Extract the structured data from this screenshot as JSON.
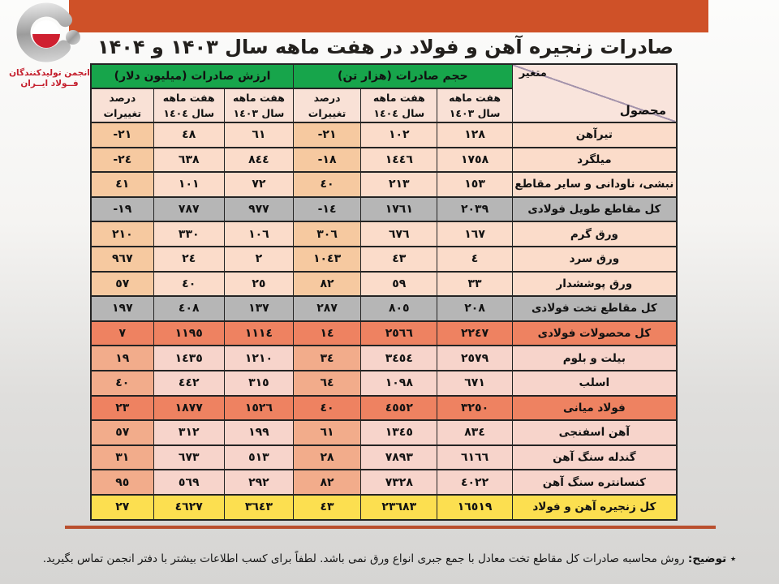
{
  "title": "صادرات زنجیره آهن و فولاد در هفت ماهه سال ۱۴۰۳ و ۱۴۰۴",
  "logo": {
    "line1": "انجمن تولیدکنندگان",
    "line2": "فــولاد ایــران"
  },
  "table": {
    "corner": {
      "variable": "متغیر",
      "product": "محصول"
    },
    "volume_group_label": "حجم صادرات (هزار تن)",
    "value_group_label": "ارزش صادرات (میلیون دلار)",
    "subheaders": {
      "seven_month": "هفت ماهه",
      "year_1403": "سال ١٤٠٣",
      "year_1404": "سال ١٤٠٤",
      "pct_change": "درصد تغییرات"
    },
    "rows": [
      {
        "product": "تیرآهن",
        "style": "a",
        "v1403": "١٢٨",
        "v1404": "١٠٢",
        "vpct": "-٢١",
        "a1403": "٦١",
        "a1404": "٤٨",
        "apct": "-٢١"
      },
      {
        "product": "میلگرد",
        "style": "a",
        "v1403": "١٧٥٨",
        "v1404": "١٤٤٦",
        "vpct": "-١٨",
        "a1403": "٨٤٤",
        "a1404": "٦٣٨",
        "apct": "-٢٤"
      },
      {
        "product": "نبشی، ناودانی و سایر مقاطع",
        "style": "a",
        "v1403": "١٥٣",
        "v1404": "٢١٣",
        "vpct": "٤٠",
        "a1403": "٧٢",
        "a1404": "١٠١",
        "apct": "٤١"
      },
      {
        "product": "کل مقاطع طویل فولادی",
        "style": "gray",
        "v1403": "٢٠٣٩",
        "v1404": "١٧٦١",
        "vpct": "-١٤",
        "a1403": "٩٧٧",
        "a1404": "٧٨٧",
        "apct": "-١٩"
      },
      {
        "product": "ورق گرم",
        "style": "a",
        "v1403": "١٦٧",
        "v1404": "٦٧٦",
        "vpct": "٣٠٦",
        "a1403": "١٠٦",
        "a1404": "٣٣٠",
        "apct": "٢١٠"
      },
      {
        "product": "ورق سرد",
        "style": "a",
        "v1403": "٤",
        "v1404": "٤٣",
        "vpct": "١٠٤٣",
        "a1403": "٢",
        "a1404": "٢٤",
        "apct": "٩٦٧"
      },
      {
        "product": "ورق پوششدار",
        "style": "a",
        "v1403": "٣٣",
        "v1404": "٥٩",
        "vpct": "٨٢",
        "a1403": "٢٥",
        "a1404": "٤٠",
        "apct": "٥٧"
      },
      {
        "product": "کل مقاطع تخت فولادی",
        "style": "gray",
        "v1403": "٢٠٨",
        "v1404": "٨٠٥",
        "vpct": "٢٨٧",
        "a1403": "١٣٧",
        "a1404": "٤٠٨",
        "apct": "١٩٧"
      },
      {
        "product": "کل محصولات فولادی",
        "style": "orange",
        "v1403": "٢٢٤٧",
        "v1404": "٢٥٦٦",
        "vpct": "١٤",
        "a1403": "١١١٤",
        "a1404": "١١٩٥",
        "apct": "٧"
      },
      {
        "product": "بیلت و بلوم",
        "style": "b",
        "v1403": "٢٥٧٩",
        "v1404": "٣٤٥٤",
        "vpct": "٣٤",
        "a1403": "١٢١٠",
        "a1404": "١٤٣٥",
        "apct": "١٩"
      },
      {
        "product": "اسلب",
        "style": "b",
        "v1403": "٦٧١",
        "v1404": "١٠٩٨",
        "vpct": "٦٤",
        "a1403": "٣١٥",
        "a1404": "٤٤٢",
        "apct": "٤٠"
      },
      {
        "product": "فولاد میانی",
        "style": "orange",
        "v1403": "٣٢٥٠",
        "v1404": "٤٥٥٢",
        "vpct": "٤٠",
        "a1403": "١٥٢٦",
        "a1404": "١٨٧٧",
        "apct": "٢٣"
      },
      {
        "product": "آهن اسفنجی",
        "style": "b",
        "v1403": "٨٣٤",
        "v1404": "١٣٤٥",
        "vpct": "٦١",
        "a1403": "١٩٩",
        "a1404": "٣١٢",
        "apct": "٥٧"
      },
      {
        "product": "گندله سنگ آهن",
        "style": "b",
        "v1403": "٦١٦٦",
        "v1404": "٧٨٩٣",
        "vpct": "٢٨",
        "a1403": "٥١٣",
        "a1404": "٦٧٣",
        "apct": "٣١"
      },
      {
        "product": "کنسانتره سنگ آهن",
        "style": "b",
        "v1403": "٤٠٢٢",
        "v1404": "٧٣٢٨",
        "vpct": "٨٢",
        "a1403": "٢٩٢",
        "a1404": "٥٦٩",
        "apct": "٩٥"
      },
      {
        "product": "کل زنجیره آهن و فولاد",
        "style": "yellow",
        "v1403": "١٦٥١٩",
        "v1404": "٢٣٦٨٣",
        "vpct": "٤٣",
        "a1403": "٣٦٤٣",
        "a1404": "٤٦٢٧",
        "apct": "٢٧"
      }
    ]
  },
  "footnote": {
    "label": "٭ توضیح:",
    "text": " روش محاسبه صادرات کل مقاطع تخت معادل با جمع جبری انواع ورق نمی باشد. لطفاً برای کسب اطلاعات بیشتر با دفتر انجمن تماس بگیرید."
  },
  "colors": {
    "top_bar": "#cf5128",
    "green_header": "#17a54b",
    "subheader_bg": "#f9e1d6",
    "peach_row": "#fbdcca",
    "peach_pct": "#f6c9a0",
    "pink_row": "#f7d4cb",
    "pink_pct": "#f2ac8b",
    "gray_row": "#b6b6b6",
    "orange_row": "#ee8261",
    "yellow_row": "#fcdf50",
    "divider": "#b94f2e",
    "logo_red": "#c5202e"
  }
}
